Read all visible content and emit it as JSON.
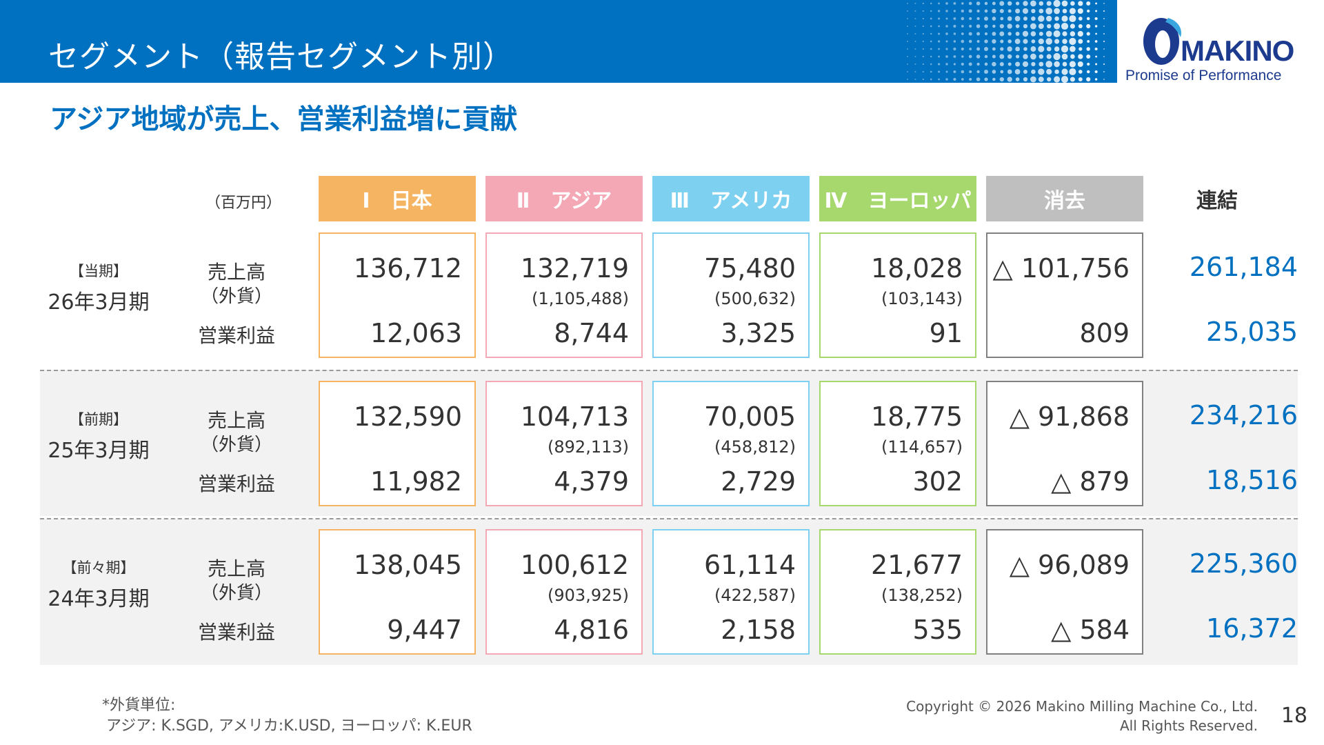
{
  "header": {
    "title": "セグメント（報告セグメント別）",
    "logo_word": "MAKINO",
    "logo_tagline": "Promise of Performance"
  },
  "subtitle": "アジア地域が売上、営業利益増に貢献",
  "unit_label": "（百万円）",
  "columns": [
    {
      "label": "Ⅰ　日本",
      "color": "#f5b461",
      "border": "#f5b461"
    },
    {
      "label": "Ⅱ　アジア",
      "color": "#f4a7b4",
      "border": "#f4a7b4"
    },
    {
      "label": "Ⅲ　アメリカ",
      "color": "#7dd0f0",
      "border": "#7dd0f0"
    },
    {
      "label": "Ⅳ　ヨーロッパ",
      "color": "#a6d86e",
      "border": "#a6d86e"
    },
    {
      "label": "消去",
      "color": "#bfbfbf",
      "border": "#808080"
    }
  ],
  "consolidated_label": "連結",
  "row_labels": {
    "sales": "売上高",
    "fx": "（外貨）",
    "op": "営業利益"
  },
  "periods": [
    {
      "tag": "【当期】",
      "name": "26年3月期",
      "cells": [
        {
          "sales": "136,712",
          "fx": "",
          "op": "12,063"
        },
        {
          "sales": "132,719",
          "fx": "(1,105,488)",
          "op": "8,744"
        },
        {
          "sales": "75,480",
          "fx": "(500,632)",
          "op": "3,325"
        },
        {
          "sales": "18,028",
          "fx": "(103,143)",
          "op": "91"
        },
        {
          "sales": "△ 101,756",
          "fx": "",
          "op": "809"
        }
      ],
      "consolidated": {
        "sales": "261,184",
        "op": "25,035"
      }
    },
    {
      "tag": "【前期】",
      "name": "25年3月期",
      "cells": [
        {
          "sales": "132,590",
          "fx": "",
          "op": "11,982"
        },
        {
          "sales": "104,713",
          "fx": "(892,113)",
          "op": "4,379"
        },
        {
          "sales": "70,005",
          "fx": "(458,812)",
          "op": "2,729"
        },
        {
          "sales": "18,775",
          "fx": "(114,657)",
          "op": "302"
        },
        {
          "sales": "△ 91,868",
          "fx": "",
          "op": "△ 879"
        }
      ],
      "consolidated": {
        "sales": "234,216",
        "op": "18,516"
      }
    },
    {
      "tag": "【前々期】",
      "name": "24年3月期",
      "cells": [
        {
          "sales": "138,045",
          "fx": "",
          "op": "9,447"
        },
        {
          "sales": "100,612",
          "fx": "(903,925)",
          "op": "4,816"
        },
        {
          "sales": "61,114",
          "fx": "(422,587)",
          "op": "2,158"
        },
        {
          "sales": "21,677",
          "fx": "(138,252)",
          "op": "535"
        },
        {
          "sales": "△ 96,089",
          "fx": "",
          "op": "△ 584"
        }
      ],
      "consolidated": {
        "sales": "225,360",
        "op": "16,372"
      }
    }
  ],
  "footnote": {
    "line1": "*外貨単位:",
    "line2": "アジア: K.SGD, アメリカ:K.USD, ヨーロッパ: K.EUR"
  },
  "copyright": {
    "line1": "Copyright © 2026 Makino Milling Machine Co., Ltd.",
    "line2": "All Rights Reserved."
  },
  "page_number": "18"
}
